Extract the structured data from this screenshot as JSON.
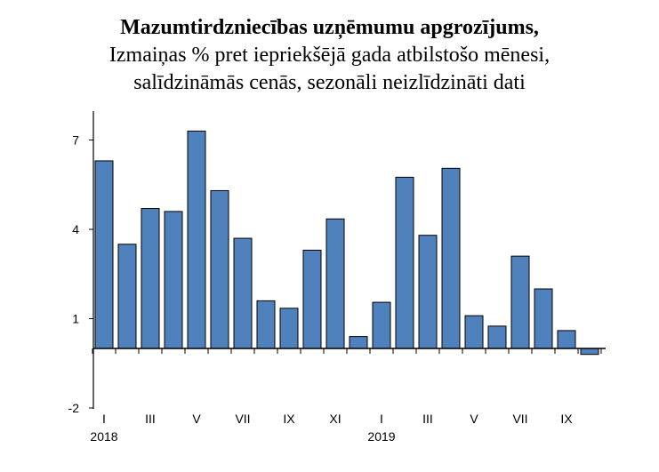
{
  "title": {
    "line1": "Mazumtirdzniecības uzņēmumu apgrozījums,",
    "line2": "Izmaiņas % pret iepriekšējā gada atbilstošo mēnesi,",
    "line3": "salīdzināmās cenās, sezonāli neizlīdzināti dati"
  },
  "chart_data": {
    "type": "bar",
    "title": "Mazumtirdzniecības uzņēmumu apgrozījums, Izmaiņas % pret iepriekšējā gada atbilstošo mēnesi, salīdzināmās cenās, sezonāli neizlīdzināti dati",
    "categories": [
      "I",
      "II",
      "III",
      "IV",
      "V",
      "VI",
      "VII",
      "VIII",
      "IX",
      "X",
      "XI",
      "XII",
      "I",
      "II",
      "III",
      "IV",
      "V",
      "VI",
      "VII",
      "VIII",
      "IX",
      "X"
    ],
    "values": [
      6.3,
      3.5,
      4.7,
      4.6,
      7.3,
      5.3,
      3.7,
      1.6,
      1.35,
      3.3,
      4.35,
      0.4,
      1.55,
      5.75,
      3.8,
      6.05,
      1.1,
      0.75,
      3.1,
      2.0,
      0.6,
      -0.2
    ],
    "x_tick_labels": [
      "I",
      "III",
      "V",
      "VII",
      "IX",
      "XI",
      "I",
      "III",
      "V",
      "VII",
      "IX"
    ],
    "year_labels": [
      "2018",
      "2019"
    ],
    "y_ticks": [
      "7",
      "4",
      "1",
      "-2"
    ],
    "ylim": [
      -2,
      8
    ],
    "bar_color": "#4f81bd",
    "bar_edge_color": "#000000"
  }
}
